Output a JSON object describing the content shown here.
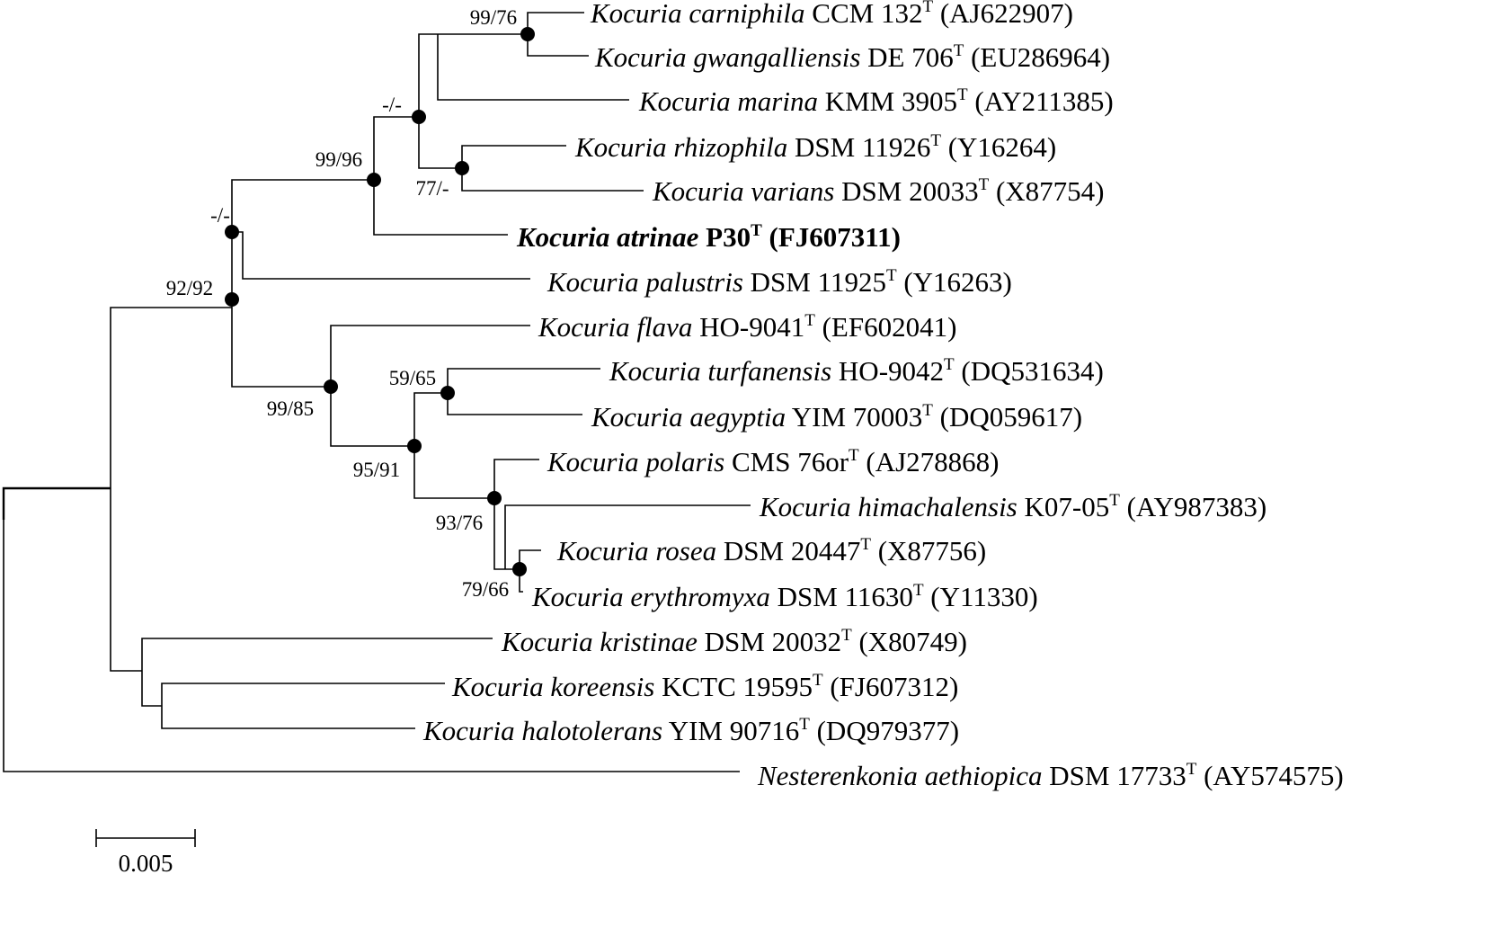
{
  "taxa": [
    {
      "key": "carniphila",
      "genus": "Kocuria",
      "species": "carniphila",
      "strain": "CCM 132",
      "type_marker": "T",
      "accession": "(AJ622907)",
      "bold": false
    },
    {
      "key": "gwangalliensis",
      "genus": "Kocuria",
      "species": "gwangalliensis",
      "strain": "DE 706",
      "type_marker": "T",
      "accession": "(EU286964)",
      "bold": false
    },
    {
      "key": "marina",
      "genus": "Kocuria",
      "species": "marina",
      "strain": "KMM 3905",
      "type_marker": "T",
      "accession": "(AY211385)",
      "bold": false
    },
    {
      "key": "rhizophila",
      "genus": "Kocuria",
      "species": "rhizophila",
      "strain": "DSM 11926",
      "type_marker": "T",
      "accession": "(Y16264)",
      "bold": false
    },
    {
      "key": "varians",
      "genus": "Kocuria",
      "species": "varians",
      "strain": "DSM 20033",
      "type_marker": "T",
      "accession": "(X87754)",
      "bold": false
    },
    {
      "key": "atrinae",
      "genus": "Kocuria",
      "species": "atrinae",
      "strain": "P30",
      "type_marker": "T",
      "accession": "(FJ607311)",
      "bold": true
    },
    {
      "key": "palustris",
      "genus": "Kocuria",
      "species": "palustris",
      "strain": "DSM 11925",
      "type_marker": "T",
      "accession": "(Y16263)",
      "bold": false
    },
    {
      "key": "flava",
      "genus": "Kocuria",
      "species": "flava",
      "strain": "HO-9041",
      "type_marker": "T",
      "accession": "(EF602041)",
      "bold": false
    },
    {
      "key": "turfanensis",
      "genus": "Kocuria",
      "species": "turfanensis",
      "strain": "HO-9042",
      "type_marker": "T",
      "accession": "(DQ531634)",
      "bold": false
    },
    {
      "key": "aegyptia",
      "genus": "Kocuria",
      "species": "aegyptia",
      "strain": "YIM 70003",
      "type_marker": "T",
      "accession": "(DQ059617)",
      "bold": false
    },
    {
      "key": "polaris",
      "genus": "Kocuria",
      "species": "polaris",
      "strain": "CMS 76or",
      "type_marker": "T",
      "accession": "(AJ278868)",
      "bold": false
    },
    {
      "key": "himachalensis",
      "genus": "Kocuria",
      "species": "himachalensis",
      "strain": "K07-05",
      "type_marker": "T",
      "accession": "(AY987383)",
      "bold": false
    },
    {
      "key": "rosea",
      "genus": "Kocuria",
      "species": "rosea",
      "strain": "DSM 20447",
      "type_marker": "T",
      "accession": "(X87756)",
      "bold": false
    },
    {
      "key": "erythromyxa",
      "genus": "Kocuria",
      "species": "erythromyxa",
      "strain": "DSM 11630",
      "type_marker": "T",
      "accession": "(Y11330)",
      "bold": false
    },
    {
      "key": "kristinae",
      "genus": "Kocuria",
      "species": "kristinae",
      "strain": "DSM 20032",
      "type_marker": "T",
      "accession": "(X80749)",
      "bold": false
    },
    {
      "key": "koreensis",
      "genus": "Kocuria",
      "species": "koreensis",
      "strain": "KCTC 19595",
      "type_marker": "T",
      "accession": "(FJ607312)",
      "bold": false
    },
    {
      "key": "halotolerans",
      "genus": "Kocuria",
      "species": "halotolerans",
      "strain": "YIM 90716",
      "type_marker": "T",
      "accession": "(DQ979377)",
      "bold": false
    },
    {
      "key": "aethiopica",
      "genus": "Nesterenkonia",
      "species": "aethiopica",
      "strain": "DSM 17733",
      "type_marker": "T",
      "accession": "(AY574575)",
      "bold": false
    }
  ],
  "bootstrap": {
    "carniphila_gwangalliensis": "99/76",
    "marina_clade": "-/-",
    "rhizophila_varians": "77/-",
    "atrinae_clade": "99/96",
    "palustris_clade": "-/-",
    "main_kocuria": "92/92",
    "flava_clade": "99/85",
    "turfanensis_aegyptia": "59/65",
    "polaris_clade": "95/91",
    "himachalensis_clade": "93/76",
    "rosea_erythromyxa": "79/66"
  },
  "scale_bar": {
    "label": "0.005"
  }
}
